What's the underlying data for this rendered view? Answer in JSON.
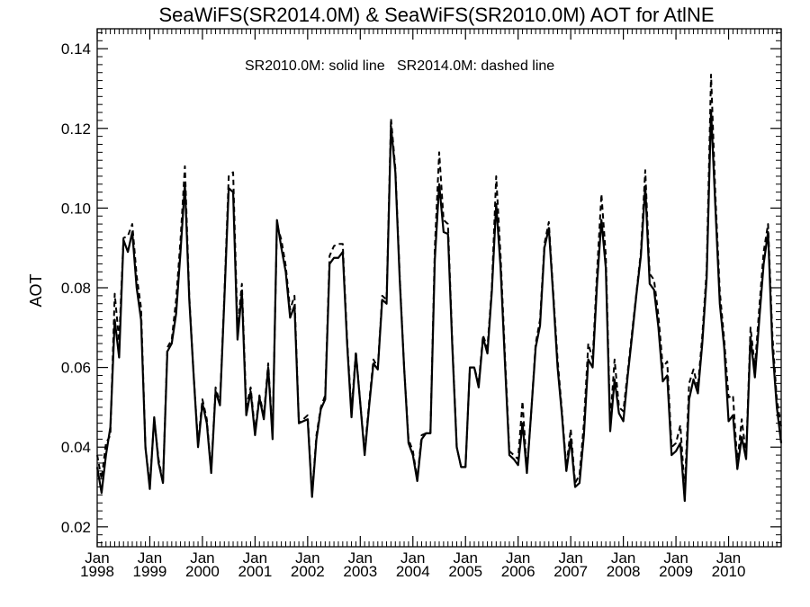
{
  "chart_data": {
    "type": "line",
    "title": "SeaWiFS(SR2014.0M) & SeaWiFS(SR2010.0M)  AOT for AtlNE",
    "annotation": "SR2010.0M: solid line   SR2014.0M: dashed line",
    "xlabel": "",
    "ylabel": "AOT",
    "x_unit": "month",
    "x_start": "1998-01",
    "xlim": [
      "1998-01",
      "2010-12"
    ],
    "ylim": [
      0.015,
      0.145
    ],
    "y_ticks": [
      "0.02",
      "0.04",
      "0.06",
      "0.08",
      "0.10",
      "0.12",
      "0.14"
    ],
    "x_tick_labels": [
      {
        "month": "Jan",
        "year": "1998"
      },
      {
        "month": "Jan",
        "year": "1999"
      },
      {
        "month": "Jan",
        "year": "2000"
      },
      {
        "month": "Jan",
        "year": "2001"
      },
      {
        "month": "Jan",
        "year": "2002"
      },
      {
        "month": "Jan",
        "year": "2003"
      },
      {
        "month": "Jan",
        "year": "2004"
      },
      {
        "month": "Jan",
        "year": "2005"
      },
      {
        "month": "Jan",
        "year": "2006"
      },
      {
        "month": "Jan",
        "year": "2007"
      },
      {
        "month": "Jan",
        "year": "2008"
      },
      {
        "month": "Jan",
        "year": "2009"
      },
      {
        "month": "Jan",
        "year": "2010"
      }
    ],
    "grid": false,
    "series": [
      {
        "name": "SR2010.0M",
        "style": "solid",
        "color": "#000000",
        "values": [
          0.035,
          0.0285,
          0.038,
          0.045,
          0.072,
          0.0625,
          0.092,
          0.089,
          0.094,
          0.08,
          0.072,
          0.04,
          0.0295,
          0.0475,
          0.036,
          0.031,
          0.064,
          0.066,
          0.0735,
          0.089,
          0.106,
          0.077,
          0.058,
          0.04,
          0.051,
          0.046,
          0.0335,
          0.054,
          0.0505,
          0.077,
          0.105,
          0.104,
          0.067,
          0.079,
          0.048,
          0.054,
          0.043,
          0.0525,
          0.047,
          0.06,
          0.042,
          0.097,
          0.09,
          0.084,
          0.0725,
          0.0755,
          0.046,
          0.0465,
          0.047,
          0.0275,
          0.042,
          0.0495,
          0.052,
          0.086,
          0.0875,
          0.0875,
          0.089,
          0.066,
          0.0475,
          0.0635,
          0.051,
          0.038,
          0.05,
          0.061,
          0.0595,
          0.077,
          0.076,
          0.1205,
          0.109,
          0.082,
          0.06,
          0.041,
          0.038,
          0.0315,
          0.042,
          0.0435,
          0.0435,
          0.087,
          0.106,
          0.094,
          0.0935,
          0.065,
          0.04,
          0.035,
          0.035,
          0.06,
          0.06,
          0.055,
          0.0675,
          0.0635,
          0.079,
          0.101,
          0.085,
          0.061,
          0.038,
          0.037,
          0.0355,
          0.046,
          0.0335,
          0.049,
          0.065,
          0.0705,
          0.09,
          0.095,
          0.078,
          0.06,
          0.048,
          0.034,
          0.042,
          0.03,
          0.031,
          0.043,
          0.062,
          0.06,
          0.081,
          0.097,
          0.085,
          0.044,
          0.057,
          0.0485,
          0.0465,
          0.058,
          0.068,
          0.0785,
          0.088,
          0.1055,
          0.081,
          0.0795,
          0.07,
          0.0565,
          0.058,
          0.038,
          0.039,
          0.041,
          0.0265,
          0.052,
          0.057,
          0.0535,
          0.066,
          0.0825,
          0.1245,
          0.1,
          0.076,
          0.065,
          0.0465,
          0.048,
          0.0345,
          0.0425,
          0.037,
          0.0675,
          0.0575,
          0.072,
          0.086,
          0.094,
          0.065,
          0.05,
          0.041
        ]
      },
      {
        "name": "SR2014.0M",
        "style": "dashed",
        "color": "#000000",
        "values": [
          0.038,
          0.032,
          0.041,
          0.043,
          0.0785,
          0.0665,
          0.0925,
          0.093,
          0.096,
          0.083,
          0.075,
          0.04,
          0.0305,
          0.047,
          0.037,
          0.031,
          0.065,
          0.067,
          0.077,
          0.092,
          0.1105,
          0.078,
          0.058,
          0.041,
          0.052,
          0.047,
          0.034,
          0.055,
          0.051,
          0.078,
          0.108,
          0.109,
          0.07,
          0.081,
          0.05,
          0.055,
          0.044,
          0.053,
          0.048,
          0.061,
          0.043,
          0.096,
          0.092,
          0.0855,
          0.0745,
          0.078,
          0.046,
          0.047,
          0.048,
          0.028,
          0.043,
          0.05,
          0.053,
          0.088,
          0.0905,
          0.091,
          0.091,
          0.067,
          0.049,
          0.064,
          0.051,
          0.039,
          0.051,
          0.062,
          0.06,
          0.078,
          0.077,
          0.1225,
          0.11,
          0.083,
          0.06,
          0.042,
          0.039,
          0.032,
          0.043,
          0.0435,
          0.0435,
          0.09,
          0.114,
          0.097,
          0.096,
          0.066,
          0.04,
          0.035,
          0.035,
          0.06,
          0.06,
          0.056,
          0.068,
          0.065,
          0.08,
          0.108,
          0.088,
          0.063,
          0.039,
          0.038,
          0.037,
          0.0515,
          0.034,
          0.049,
          0.066,
          0.072,
          0.091,
          0.0965,
          0.079,
          0.062,
          0.049,
          0.035,
          0.0445,
          0.031,
          0.033,
          0.046,
          0.066,
          0.062,
          0.084,
          0.1035,
          0.088,
          0.046,
          0.062,
          0.05,
          0.049,
          0.059,
          0.069,
          0.079,
          0.089,
          0.1095,
          0.0835,
          0.082,
          0.073,
          0.06,
          0.0615,
          0.04,
          0.041,
          0.0455,
          0.029,
          0.056,
          0.0595,
          0.055,
          0.068,
          0.0845,
          0.1335,
          0.103,
          0.079,
          0.067,
          0.0525,
          0.053,
          0.036,
          0.047,
          0.038,
          0.07,
          0.06,
          0.075,
          0.089,
          0.096,
          0.068,
          0.052,
          0.045
        ]
      }
    ]
  }
}
